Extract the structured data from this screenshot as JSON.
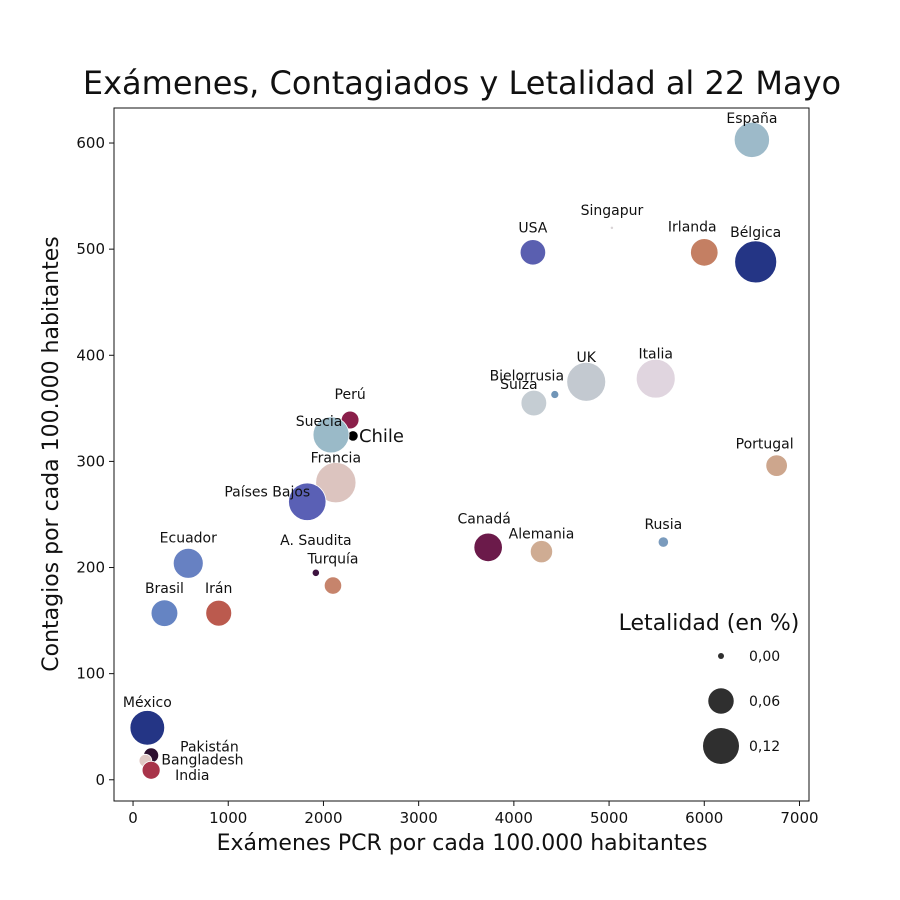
{
  "chart_data": {
    "type": "scatter",
    "title": "Exámenes, Contagiados y Letalidad al 22 Mayo",
    "xlabel": "Exámenes PCR por cada 100.000 habitantes",
    "ylabel": "Contagios por cada 100.000 habitantes",
    "xlim": [
      -200,
      7100
    ],
    "ylim": [
      -20,
      633
    ],
    "xticks": [
      0,
      1000,
      2000,
      3000,
      4000,
      5000,
      6000,
      7000
    ],
    "yticks": [
      0,
      100,
      200,
      300,
      400,
      500,
      600
    ],
    "size_legend": {
      "title": "Letalidad (en %)",
      "entries": [
        {
          "label": "0,00",
          "value": 0.0
        },
        {
          "label": "0,06",
          "value": 0.06
        },
        {
          "label": "0,12",
          "value": 0.12
        }
      ]
    },
    "points": [
      {
        "label": "España",
        "x": 6500,
        "y": 603,
        "letalidad": 0.115,
        "color": "#9dbac9"
      },
      {
        "label": "Singapur",
        "x": 5030,
        "y": 520,
        "letalidad": 0.001,
        "color": "#d9d4d6"
      },
      {
        "label": "USA",
        "x": 4200,
        "y": 497,
        "letalidad": 0.06,
        "color": "#5a5fb0"
      },
      {
        "label": "Irlanda",
        "x": 6000,
        "y": 497,
        "letalidad": 0.07,
        "color": "#c47f63"
      },
      {
        "label": "Bélgica",
        "x": 6540,
        "y": 488,
        "letalidad": 0.163,
        "color": "#243585"
      },
      {
        "label": "Italia",
        "x": 5490,
        "y": 378,
        "letalidad": 0.14,
        "color": "#e0d5df"
      },
      {
        "label": "UK",
        "x": 4760,
        "y": 375,
        "letalidad": 0.14,
        "color": "#c3c9d0"
      },
      {
        "label": "Bielorrusia",
        "x": 4430,
        "y": 363,
        "letalidad": 0.006,
        "color": "#7095b7"
      },
      {
        "label": "Suiza",
        "x": 4210,
        "y": 355,
        "letalidad": 0.061,
        "color": "#c5cdd3"
      },
      {
        "label": "Perú",
        "x": 2280,
        "y": 339,
        "letalidad": 0.029,
        "color": "#8a1f4a"
      },
      {
        "label": "Chile",
        "x": 2310,
        "y": 324,
        "letalidad": 0.01,
        "color": "#000000"
      },
      {
        "label": "Suecia",
        "x": 2080,
        "y": 325,
        "letalidad": 0.12,
        "color": "#9abac8"
      },
      {
        "label": "Portugal",
        "x": 6760,
        "y": 296,
        "letalidad": 0.043,
        "color": "#cda68d"
      },
      {
        "label": "Francia",
        "x": 2130,
        "y": 280,
        "letalidad": 0.15,
        "color": "#dcc4bf"
      },
      {
        "label": "Países Bajos",
        "x": 1830,
        "y": 262,
        "letalidad": 0.13,
        "color": "#5a60b5"
      },
      {
        "label": "Rusia",
        "x": 5570,
        "y": 224,
        "letalidad": 0.01,
        "color": "#7a9bbd"
      },
      {
        "label": "Canadá",
        "x": 3730,
        "y": 219,
        "letalidad": 0.075,
        "color": "#6b1a4a"
      },
      {
        "label": "Alemania",
        "x": 4290,
        "y": 215,
        "letalidad": 0.046,
        "color": "#cfac93"
      },
      {
        "label": "Ecuador",
        "x": 580,
        "y": 204,
        "letalidad": 0.083,
        "color": "#6781c2"
      },
      {
        "label": "A. Saudita",
        "x": 1920,
        "y": 195,
        "letalidad": 0.005,
        "color": "#3d1340"
      },
      {
        "label": "Turquía",
        "x": 2100,
        "y": 183,
        "letalidad": 0.028,
        "color": "#c6846c"
      },
      {
        "label": "Brasil",
        "x": 330,
        "y": 157,
        "letalidad": 0.066,
        "color": "#6584c3"
      },
      {
        "label": "Irán",
        "x": 900,
        "y": 157,
        "letalidad": 0.062,
        "color": "#bb5a4e"
      },
      {
        "label": "México",
        "x": 150,
        "y": 49,
        "letalidad": 0.111,
        "color": "#243585"
      },
      {
        "label": "Pakistán",
        "x": 190,
        "y": 23,
        "letalidad": 0.021,
        "color": "#2d1030"
      },
      {
        "label": "Bangladesh",
        "x": 130,
        "y": 18,
        "letalidad": 0.015,
        "color": "#e0c8c4"
      },
      {
        "label": "India",
        "x": 190,
        "y": 9,
        "letalidad": 0.03,
        "color": "#a8344a"
      }
    ]
  }
}
